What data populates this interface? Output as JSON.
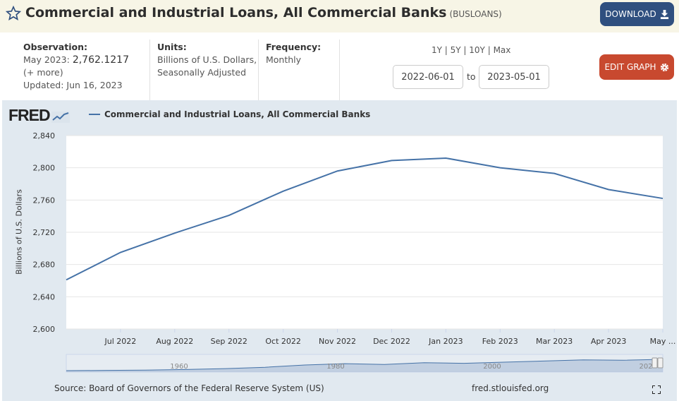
{
  "header": {
    "title": "Commercial and Industrial Loans, All Commercial Banks",
    "series_code": "(BUSLOANS)",
    "download_label": "DOWNLOAD"
  },
  "meta": {
    "observation_label": "Observation:",
    "observation_period": "May 2023:",
    "observation_value": "2,762.1217",
    "more_label": "(+ more)",
    "updated": "Updated: Jun 16, 2023",
    "units_label": "Units:",
    "units_line1": "Billions of U.S. Dollars,",
    "units_line2": "Seasonally Adjusted",
    "frequency_label": "Frequency:",
    "frequency_value": "Monthly"
  },
  "controls": {
    "ranges": [
      "1Y",
      "5Y",
      "10Y",
      "Max"
    ],
    "start_date": "2022-06-01",
    "to_label": "to",
    "end_date": "2023-05-01",
    "edit_label": "EDIT GRAPH"
  },
  "legend": {
    "series_name": "Commercial and Industrial Loans, All Commercial Banks"
  },
  "footer": {
    "source": "Source: Board of Governors of the Federal Reserve System (US)",
    "site": "fred.stlouisfed.org"
  },
  "colors": {
    "series": "#4572a7",
    "download_bg": "#2f4f7f",
    "edit_bg": "#c8492f",
    "panel_bg": "#e1e9f0",
    "header_bg": "#f7f5e6"
  },
  "chart_data": {
    "type": "line",
    "x": [
      "2022-06",
      "Jul 2022",
      "Aug 2022",
      "Sep 2022",
      "Oct 2022",
      "Nov 2022",
      "Dec 2022",
      "Jan 2023",
      "Feb 2023",
      "Mar 2023",
      "Apr 2023",
      "May 2023"
    ],
    "x_tick_labels": [
      "Jul 2022",
      "Aug 2022",
      "Sep 2022",
      "Oct 2022",
      "Nov 2022",
      "Dec 2022",
      "Jan 2023",
      "Feb 2023",
      "Mar 2023",
      "Apr 2023",
      "May ..."
    ],
    "series": [
      {
        "name": "Commercial and Industrial Loans, All Commercial Banks",
        "values": [
          2661,
          2695,
          2719,
          2741,
          2771,
          2796,
          2809,
          2812,
          2800,
          2793,
          2773,
          2762
        ]
      }
    ],
    "ylabel": "Billions of U.S. Dollars",
    "ylim": [
      2600,
      2840
    ],
    "yticks": [
      2600,
      2640,
      2680,
      2720,
      2760,
      2800,
      2840
    ],
    "ytick_labels": [
      "2,600",
      "2,640",
      "2,680",
      "2,720",
      "2,760",
      "2,800",
      "2,840"
    ],
    "grid": true,
    "navigator_labels": [
      "1960",
      "1980",
      "2000",
      "202"
    ]
  }
}
